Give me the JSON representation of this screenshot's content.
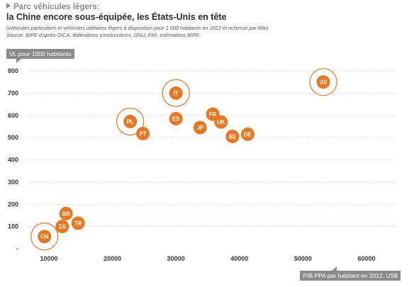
{
  "header": {
    "kicker": "Parc véhicules légers:",
    "title": "la Chine encore sous-équipée, les États-Unis en tête",
    "subtitle": "(véhicules particuliers et véhicules utilitaires légers à disposition pour 1 000 habitants en 2012 et richesse par tête)",
    "source": "Source: BIPE d'après OICA, fédérations constructeurs, ONU, FMI, estimations BIPE."
  },
  "colors": {
    "marker": "#e87722",
    "ring": "#e87722",
    "grid": "#c8c8c8",
    "tag": "#8b8b8b"
  },
  "chart_data": {
    "type": "scatter",
    "ylabel": "VL pour 1000 habitants",
    "xlabel": "PIB PPA par habitant en 2012, US$",
    "xlim": [
      5000,
      65000
    ],
    "ylim": [
      0,
      800
    ],
    "x_ticks": [
      "10000",
      "20000",
      "30000",
      "40000",
      "50000",
      "60000"
    ],
    "x_tick_values": [
      10000,
      20000,
      30000,
      40000,
      50000,
      60000
    ],
    "y_ticks": [
      "-",
      "100",
      "200",
      "300",
      "400",
      "500",
      "600",
      "700",
      "800"
    ],
    "y_tick_values": [
      0,
      100,
      200,
      300,
      400,
      500,
      600,
      700,
      800
    ],
    "grid": "horizontal dotted",
    "points": [
      {
        "label": "CN",
        "x": 9300,
        "y": 55,
        "highlight": true
      },
      {
        "label": "ZA",
        "x": 12100,
        "y": 100,
        "highlight": false
      },
      {
        "label": "BR",
        "x": 12700,
        "y": 158,
        "highlight": false
      },
      {
        "label": "TR",
        "x": 14600,
        "y": 115,
        "highlight": false
      },
      {
        "label": "PL",
        "x": 22800,
        "y": 572,
        "highlight": true
      },
      {
        "label": "PT",
        "x": 24800,
        "y": 518,
        "highlight": false
      },
      {
        "label": "IT",
        "x": 30000,
        "y": 700,
        "highlight": true
      },
      {
        "label": "ES",
        "x": 30000,
        "y": 585,
        "highlight": false
      },
      {
        "label": "JP",
        "x": 33800,
        "y": 545,
        "highlight": false
      },
      {
        "label": "FR",
        "x": 35800,
        "y": 605,
        "highlight": false
      },
      {
        "label": "UK",
        "x": 37100,
        "y": 570,
        "highlight": false
      },
      {
        "label": "BE",
        "x": 38900,
        "y": 505,
        "highlight": false
      },
      {
        "label": "DE",
        "x": 41300,
        "y": 515,
        "highlight": false
      },
      {
        "label": "US",
        "x": 53200,
        "y": 750,
        "highlight": true
      }
    ]
  }
}
